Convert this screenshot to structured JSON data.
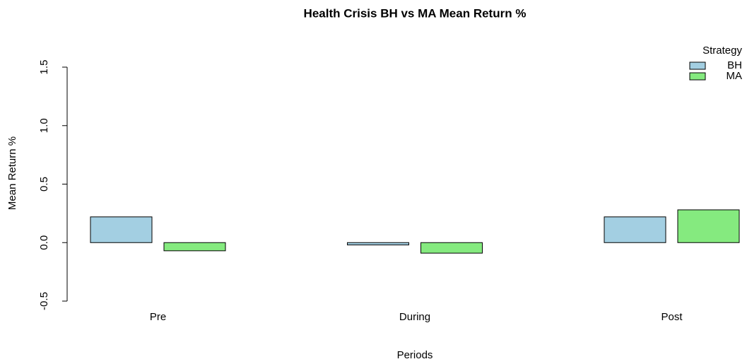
{
  "chart_data": {
    "type": "bar",
    "title": "Health Crisis BH vs MA Mean Return %",
    "x_label": "Periods",
    "y_label": "Mean Return %",
    "categories": [
      "Pre",
      "During",
      "Post"
    ],
    "series": [
      {
        "name": "BH",
        "color": "#a3cfe2",
        "values": [
          0.22,
          -0.02,
          0.22
        ]
      },
      {
        "name": "MA",
        "color": "#85ea7f",
        "values": [
          -0.07,
          -0.09,
          0.28
        ]
      }
    ],
    "ylim": [
      -0.5,
      1.5
    ],
    "yticks": [
      -0.5,
      {
        "value": 0,
        "label": "0.0"
      },
      0.5,
      {
        "value": 1,
        "label": "1.0"
      },
      1.5
    ],
    "legend_title": "Strategy",
    "legend_position": "top-right",
    "grid": false
  }
}
